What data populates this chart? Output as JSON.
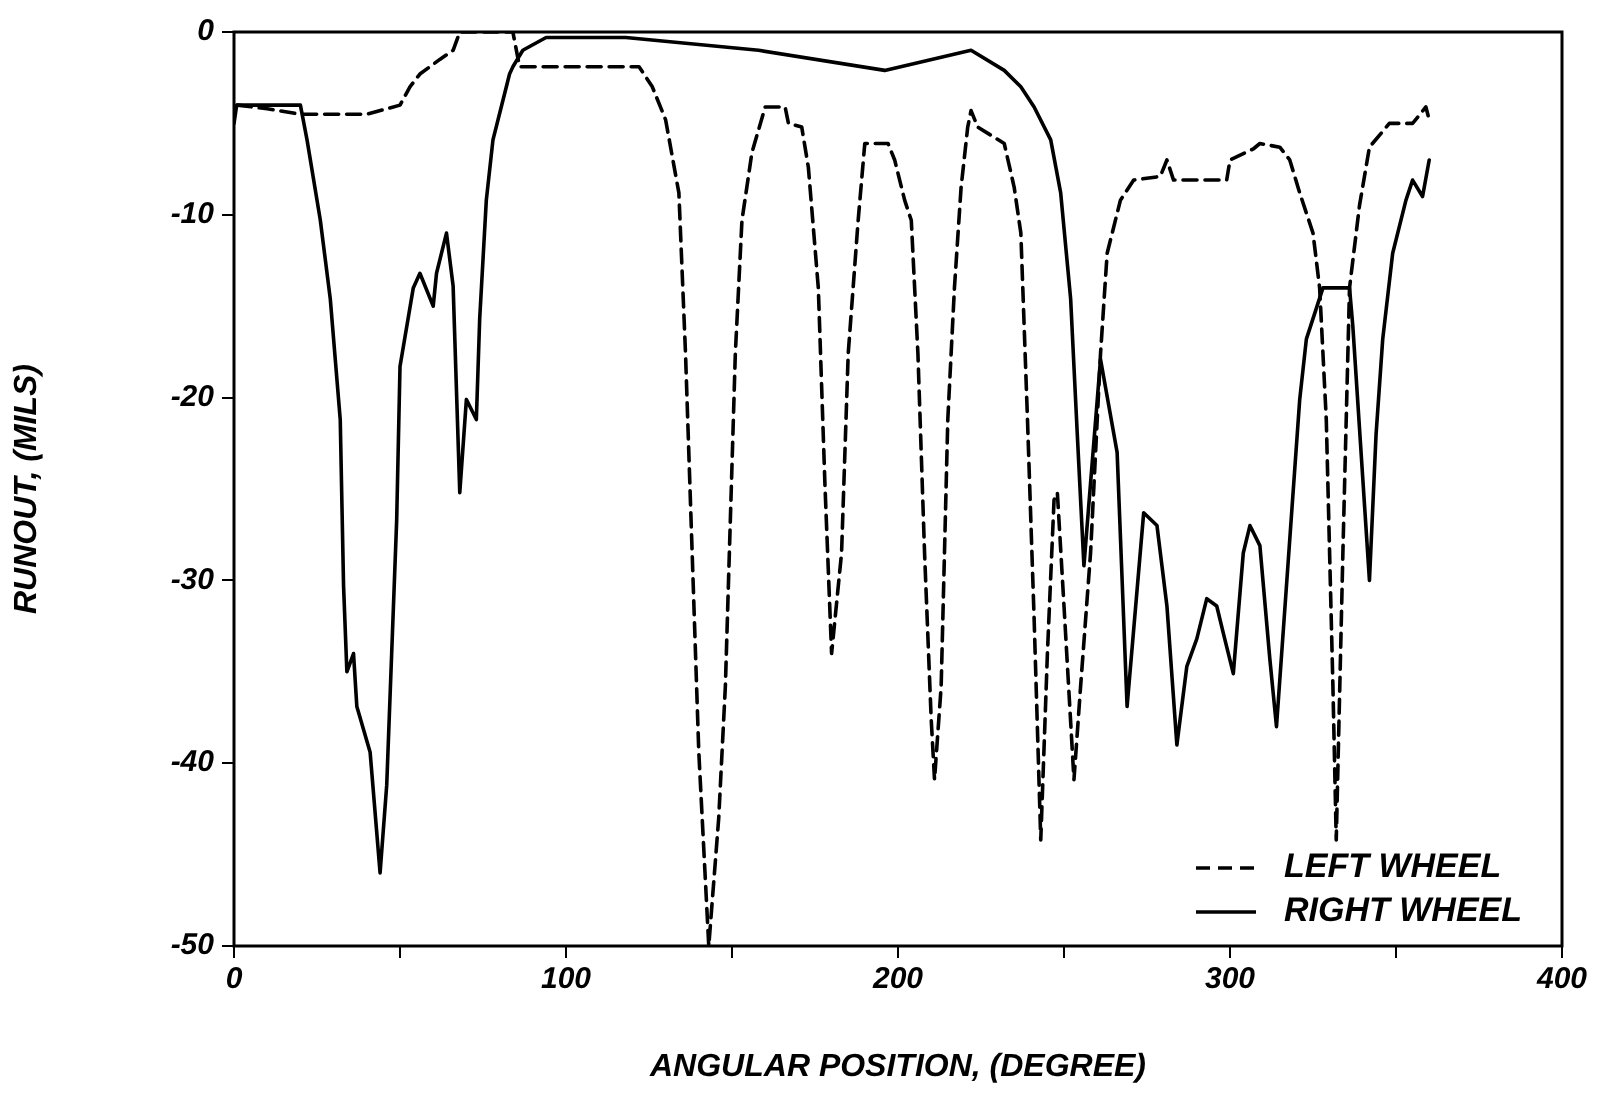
{
  "chart_data": {
    "type": "line",
    "xlabel": "ANGULAR POSITION, (DEGREE)",
    "ylabel": "RUNOUT, (MILS)",
    "xlim": [
      0,
      400
    ],
    "xticks": [
      0,
      {
        "value": 50,
        "label": null
      },
      100,
      {
        "value": 150,
        "label": null
      },
      200,
      {
        "value": 250,
        "label": null
      },
      300,
      {
        "value": 350,
        "label": null
      },
      400
    ],
    "ylim": [
      -50,
      0
    ],
    "yticks": [
      -50,
      -40,
      -30,
      -20,
      -10,
      0
    ],
    "grid": false,
    "legend": "bottom right",
    "marker": "none",
    "series": [
      {
        "name": "LEFT WHEEL",
        "color": "#000000",
        "line_style": "dashed",
        "x": [
          1,
          10,
          20,
          30,
          40,
          50,
          53,
          56,
          62,
          66,
          68,
          84,
          86,
          122,
          126,
          130,
          134,
          136,
          138,
          140,
          143,
          146,
          148,
          151,
          153,
          156,
          160,
          166,
          167,
          171,
          173,
          176,
          178,
          180,
          183,
          185,
          188,
          190,
          197,
          199,
          202,
          204,
          206,
          208,
          210,
          211,
          213,
          215,
          217,
          219,
          221,
          222,
          224,
          232,
          235,
          237,
          239,
          241,
          243,
          245,
          247,
          248,
          250,
          253,
          255,
          258,
          261,
          263,
          267,
          271,
          279,
          281,
          283,
          299,
          300,
          307,
          309,
          315,
          318,
          321,
          325,
          327,
          329,
          331,
          332,
          334,
          336,
          339,
          342,
          348,
          355,
          359,
          360
        ],
        "values": [
          -4,
          -4.2,
          -4.5,
          -4.5,
          -4.5,
          -4,
          -3,
          -2.3,
          -1.5,
          -1,
          0,
          0,
          -1.9,
          -1.9,
          -3,
          -4.8,
          -8.8,
          -17.6,
          -28.5,
          -39.4,
          -50,
          -43,
          -35.8,
          -17.6,
          -10.3,
          -6.6,
          -4.1,
          -4.1,
          -5,
          -5.2,
          -7.4,
          -14,
          -24.8,
          -34,
          -28.5,
          -17.6,
          -10.3,
          -6.1,
          -6.1,
          -7,
          -9.2,
          -10.3,
          -17.6,
          -28.5,
          -37.6,
          -40.9,
          -35.8,
          -21.2,
          -14,
          -8.5,
          -5.2,
          -4.3,
          -5.2,
          -6.1,
          -8.5,
          -11,
          -21.2,
          -32.1,
          -44.2,
          -34,
          -25.6,
          -25.2,
          -31.4,
          -40.9,
          -35.8,
          -28.5,
          -17.6,
          -12.1,
          -9.2,
          -8.1,
          -7.9,
          -7,
          -8.1,
          -8.1,
          -7,
          -6.4,
          -6.1,
          -6.3,
          -7,
          -8.8,
          -11,
          -14,
          -21.2,
          -35.8,
          -44.2,
          -28.5,
          -14,
          -9.5,
          -6.3,
          -5,
          -5,
          -4.1,
          -4.8
        ]
      },
      {
        "name": "RIGHT WHEEL",
        "color": "#000000",
        "line_style": "solid",
        "x": [
          0,
          0.8,
          20,
          22,
          26,
          29,
          32,
          33,
          34,
          36,
          37,
          41,
          44,
          46,
          49,
          50,
          54,
          56,
          60,
          61,
          64,
          66,
          68,
          70,
          73,
          74,
          76,
          78,
          83,
          84,
          87,
          94,
          118,
          158,
          196,
          222,
          232,
          237,
          241,
          246,
          249,
          252,
          254,
          256,
          261,
          266,
          269,
          274,
          278,
          281,
          284,
          287,
          290,
          293,
          296,
          298,
          301,
          304,
          306,
          309,
          312,
          314,
          319,
          321,
          323,
          328,
          336,
          337,
          342,
          344,
          346,
          349,
          353,
          355,
          358,
          360
        ],
        "values": [
          -5,
          -4,
          -4,
          -5.9,
          -10.3,
          -14.6,
          -21.2,
          -30.3,
          -35,
          -34,
          -36.9,
          -39.4,
          -46,
          -41.2,
          -26.7,
          -18.3,
          -14,
          -13.2,
          -15,
          -13.2,
          -11,
          -13.9,
          -25.2,
          -20.1,
          -21.2,
          -15.7,
          -9.2,
          -5.9,
          -2.3,
          -1.9,
          -1,
          -0.3,
          -0.3,
          -1,
          -2.1,
          -1,
          -2.1,
          -3,
          -4.1,
          -5.9,
          -8.8,
          -14.6,
          -22,
          -29.2,
          -17.9,
          -23,
          -36.9,
          -26.3,
          -27,
          -31.4,
          -39,
          -34.7,
          -33.2,
          -31,
          -31.4,
          -32.9,
          -35.1,
          -28.5,
          -27,
          -28.1,
          -34.3,
          -38,
          -25.2,
          -20.1,
          -16.8,
          -14,
          -14,
          -16.1,
          -30,
          -22,
          -16.8,
          -12.1,
          -9.2,
          -8.1,
          -9,
          -7
        ]
      }
    ]
  }
}
